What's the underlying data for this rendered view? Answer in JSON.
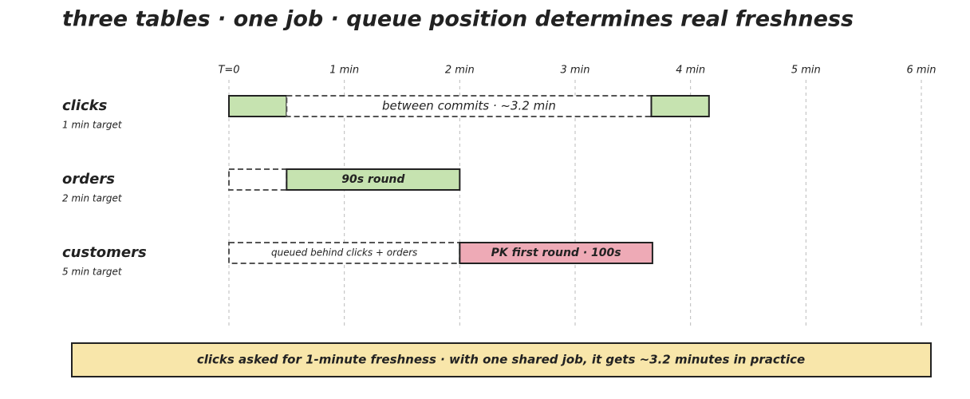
{
  "chart_data": {
    "type": "gantt",
    "title": "three tables · one job · queue position determines real freshness",
    "xlim": [
      0,
      6
    ],
    "xticks": [
      {
        "value": 0,
        "label": "T=0"
      },
      {
        "value": 1,
        "label": "1 min"
      },
      {
        "value": 2,
        "label": "2 min"
      },
      {
        "value": 3,
        "label": "3 min"
      },
      {
        "value": 4,
        "label": "4 min"
      },
      {
        "value": 5,
        "label": "5 min"
      },
      {
        "value": 6,
        "label": "6 min"
      }
    ],
    "grid": true,
    "rows": [
      {
        "name": "clicks",
        "subtitle": "1 min target",
        "segments": [
          {
            "start": 0,
            "end": 0.5,
            "style": "solid",
            "color": "#c6e3b0"
          },
          {
            "start": 0.5,
            "end": 3.66,
            "style": "dashed",
            "label": "between commits · ~3.2 min"
          },
          {
            "start": 3.66,
            "end": 4.16,
            "style": "solid",
            "color": "#c6e3b0"
          }
        ]
      },
      {
        "name": "orders",
        "subtitle": "2 min target",
        "segments": [
          {
            "start": 0,
            "end": 0.5,
            "style": "dashed"
          },
          {
            "start": 0.5,
            "end": 2,
            "style": "solid",
            "color": "#c6e3b0",
            "label": "90s round"
          }
        ]
      },
      {
        "name": "customers",
        "subtitle": "5 min target",
        "segments": [
          {
            "start": 0,
            "end": 2,
            "style": "dashed",
            "label": "queued behind clicks + orders"
          },
          {
            "start": 2,
            "end": 3.67,
            "style": "solid",
            "color": "#eeaab6",
            "label": "PK first round · 100s"
          }
        ]
      }
    ],
    "caption": "clicks asked for 1-minute freshness · with one shared job, it gets ~3.2 minutes in practice",
    "caption_color": "#f8e6aa"
  }
}
